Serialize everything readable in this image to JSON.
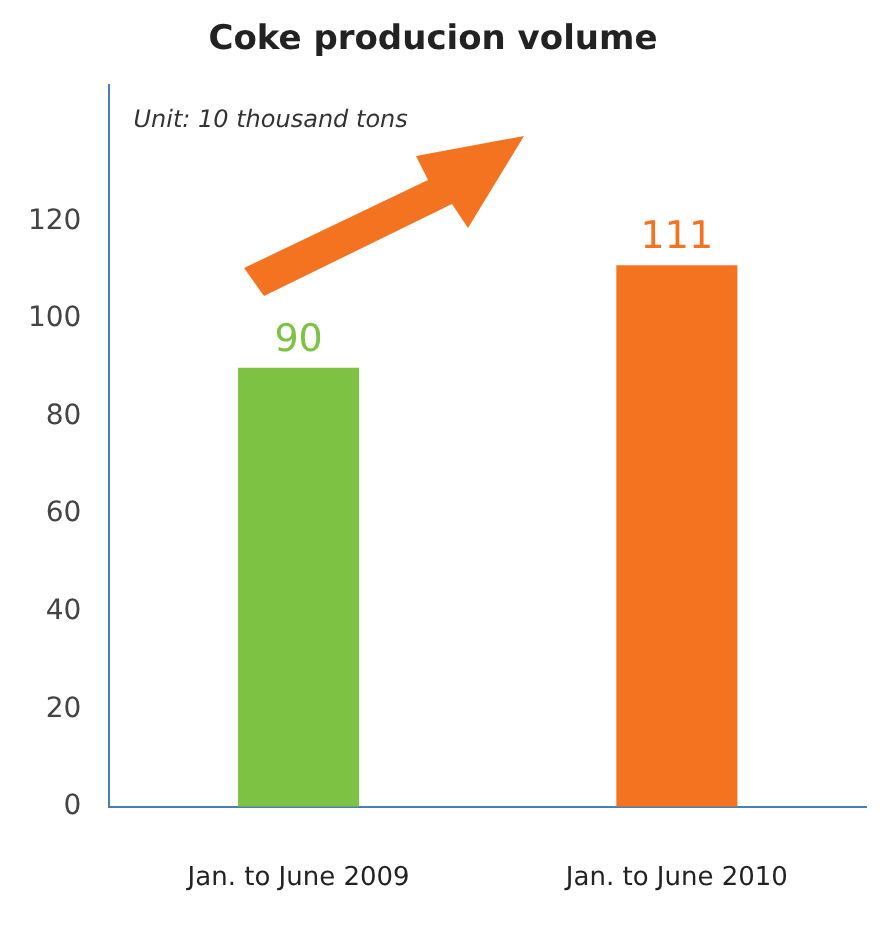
{
  "chart_data": {
    "type": "bar",
    "title": "Coke producion volume",
    "categories": [
      "Jan. to June 2009",
      "Jan. to June 2010"
    ],
    "values": [
      90,
      111
    ],
    "colors": [
      "#7dc242",
      "#f47321"
    ],
    "ylim": [
      0,
      148
    ],
    "yticks": [
      0,
      20,
      40,
      60,
      80,
      100,
      120
    ],
    "grid": false,
    "legend": false,
    "data_labels": true,
    "annotations": [
      "Unit: 10 thousand tons"
    ]
  }
}
